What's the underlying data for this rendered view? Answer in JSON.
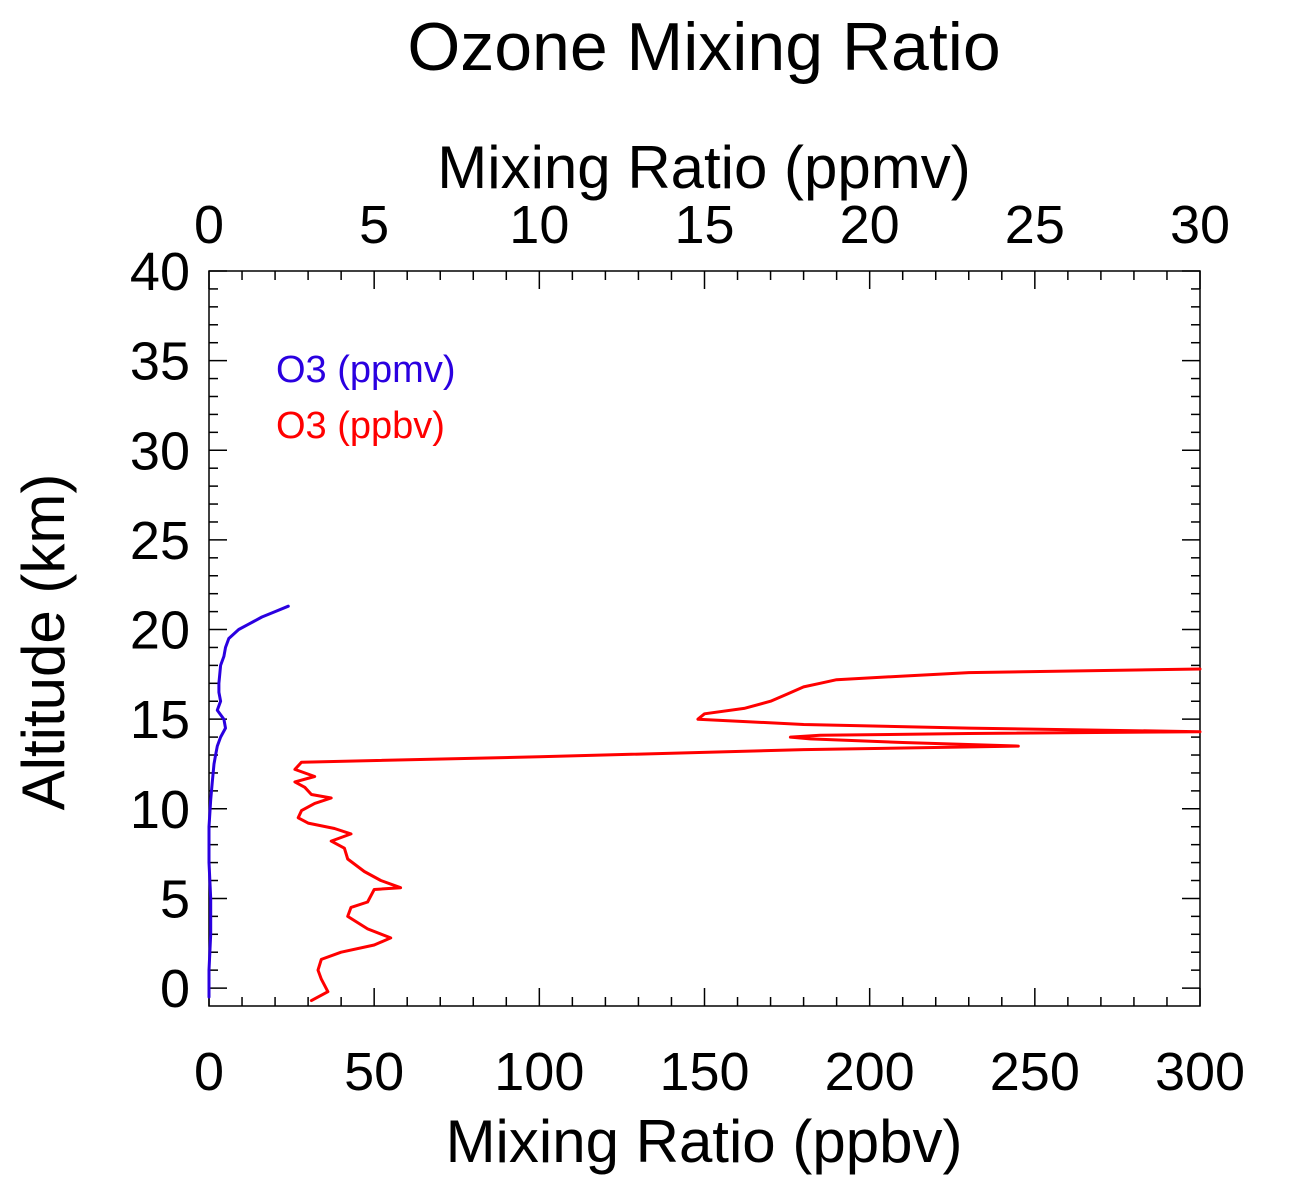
{
  "chart_data": {
    "type": "line",
    "title": "Ozone Mixing Ratio",
    "xlabel_bottom": "Mixing Ratio (ppbv)",
    "xlabel_top": "Mixing Ratio (ppmv)",
    "ylabel": "Altitude (km)",
    "xlim_bottom": [
      0,
      300
    ],
    "xlim_top": [
      0,
      30
    ],
    "ylim": [
      -1,
      40
    ],
    "xticks_bottom": [
      0,
      50,
      100,
      150,
      200,
      250,
      300
    ],
    "xticks_top": [
      0,
      5,
      10,
      15,
      20,
      25,
      30
    ],
    "yticks": [
      0,
      5,
      10,
      15,
      20,
      25,
      30,
      35,
      40
    ],
    "grid": false,
    "legend_position": "top-left",
    "series": [
      {
        "name": "O3 (ppmv)",
        "axis": "top",
        "color": "#2a00e0",
        "x": [
          0.0,
          0.0,
          0.05,
          0.05,
          0.0,
          0.0,
          0.05,
          0.1,
          0.15,
          0.2,
          0.25,
          0.35,
          0.5,
          0.45,
          0.25,
          0.35,
          0.3,
          0.3,
          0.35,
          0.45,
          0.5,
          0.6,
          0.9,
          1.2,
          1.6,
          2.0,
          2.4
        ],
        "y": [
          -0.5,
          1.0,
          3.0,
          5.0,
          7.0,
          9.0,
          10.5,
          11.5,
          12.5,
          13.0,
          13.5,
          14.0,
          14.5,
          15.0,
          15.5,
          16.0,
          16.5,
          17.0,
          18.0,
          18.5,
          19.0,
          19.5,
          20.0,
          20.3,
          20.7,
          21.0,
          21.3
        ]
      },
      {
        "name": "O3 (ppbv)",
        "axis": "bottom",
        "color": "#ff0000",
        "x": [
          31,
          36,
          34,
          33,
          34,
          40,
          50,
          55,
          48,
          42,
          43,
          48,
          50,
          58,
          52,
          47,
          42,
          41,
          37,
          43,
          38,
          30,
          27,
          28,
          32,
          37,
          31,
          29,
          26,
          32,
          26,
          28,
          100,
          180,
          245,
          210,
          182,
          176,
          185,
          230,
          300,
          230,
          180,
          148,
          150,
          162,
          170,
          175,
          180,
          185,
          190,
          210,
          230,
          300
        ],
        "y": [
          -0.7,
          -0.2,
          0.5,
          1.0,
          1.6,
          2.0,
          2.4,
          2.8,
          3.3,
          4.0,
          4.5,
          4.8,
          5.5,
          5.6,
          6.0,
          6.5,
          7.2,
          7.8,
          8.2,
          8.6,
          8.9,
          9.2,
          9.5,
          9.9,
          10.3,
          10.6,
          10.8,
          11.2,
          11.5,
          11.8,
          12.2,
          12.6,
          12.9,
          13.3,
          13.5,
          13.7,
          13.9,
          14.0,
          14.1,
          14.2,
          14.3,
          14.5,
          14.7,
          15.0,
          15.3,
          15.6,
          16.0,
          16.4,
          16.8,
          17.0,
          17.2,
          17.4,
          17.6,
          17.8
        ]
      }
    ]
  }
}
